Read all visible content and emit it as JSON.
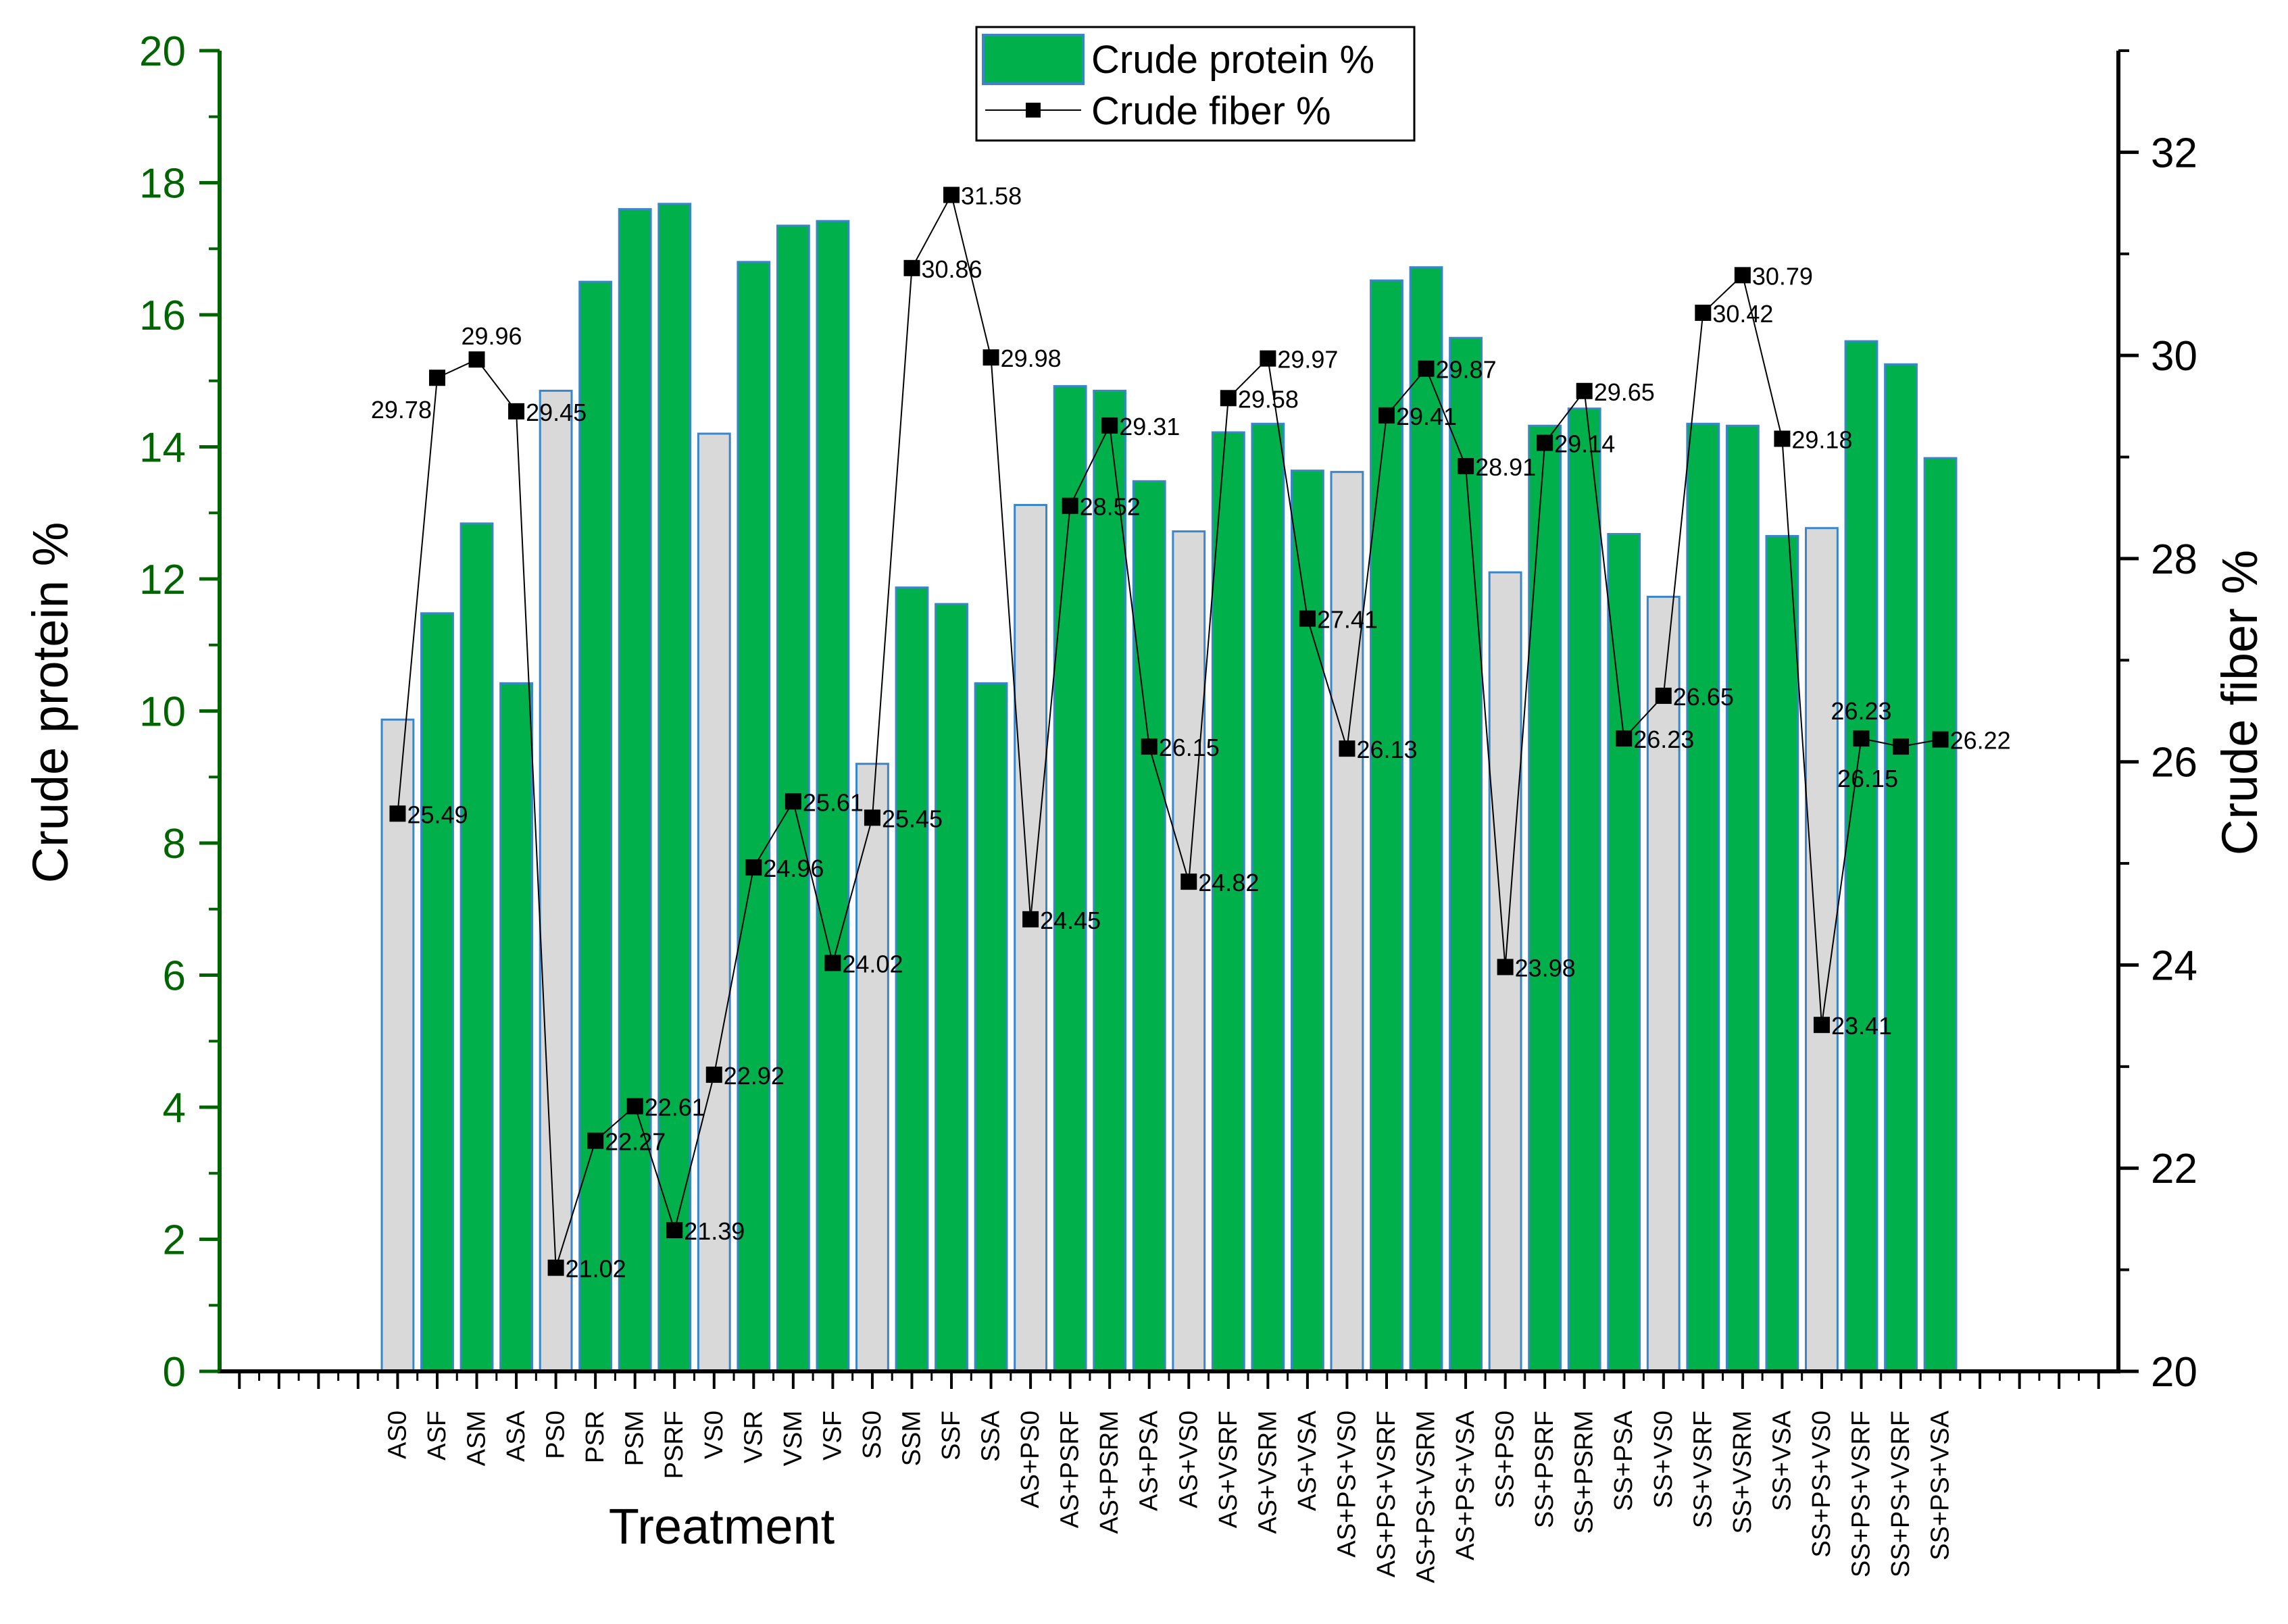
{
  "chart_data": {
    "type": "bar+line",
    "categories": [
      "AS0",
      "ASF",
      "ASM",
      "ASA",
      "PS0",
      "PSR",
      "PSM",
      "PSRF",
      "VS0",
      "VSR",
      "VSM",
      "VSF",
      "SS0",
      "SSM",
      "SSF",
      "SSA",
      "AS+PS0",
      "AS+PSRF",
      "AS+PSRM",
      "AS+PSA",
      "AS+VS0",
      "AS+VSRF",
      "AS+VSRM",
      "AS+VSA",
      "AS+PS+VS0",
      "AS+PS+VSRF",
      "AS+PS+VSRM",
      "AS+PS+VSA",
      "SS+PS0",
      "SS+PSRF",
      "SS+PSRM",
      "SS+PSA",
      "SS+VS0",
      "SS+VSRF",
      "SS+VSRM",
      "SS+VSA",
      "SS+PS+VS0",
      "SS+PS+VSRF",
      "SS+PS+VSRF",
      "SS+PS+VSA"
    ],
    "control_categories": [
      "AS0",
      "PS0",
      "VS0",
      "SS0",
      "AS+PS0",
      "AS+VS0",
      "AS+PS+VS0",
      "SS+PS0",
      "SS+VS0",
      "SS+PS+VS0"
    ],
    "series": [
      {
        "name": "Crude protein %",
        "type": "bar",
        "axis": "left",
        "color": "#00B04A",
        "control_color": "#D9D9D9",
        "values": [
          9.87,
          11.48,
          12.84,
          10.42,
          14.85,
          16.5,
          17.6,
          17.68,
          14.2,
          16.8,
          17.35,
          17.42,
          9.2,
          11.87,
          11.62,
          10.42,
          13.12,
          14.92,
          14.85,
          13.48,
          12.72,
          14.22,
          14.35,
          13.64,
          13.62,
          16.52,
          16.72,
          15.65,
          12.1,
          14.32,
          14.58,
          12.68,
          11.73,
          14.35,
          14.32,
          12.65,
          12.77,
          15.6,
          15.25,
          13.83
        ]
      },
      {
        "name": "Crude fiber %",
        "type": "line",
        "axis": "right",
        "color": "#000000",
        "values": [
          25.49,
          29.78,
          29.96,
          29.45,
          21.02,
          22.27,
          22.61,
          21.39,
          22.92,
          24.96,
          25.61,
          24.02,
          25.45,
          30.86,
          31.58,
          29.98,
          24.45,
          28.52,
          29.31,
          26.15,
          24.82,
          29.58,
          29.97,
          27.41,
          26.13,
          29.41,
          29.87,
          28.91,
          23.98,
          29.14,
          29.65,
          26.23,
          26.65,
          30.42,
          30.79,
          29.18,
          23.41,
          26.23,
          26.15,
          26.22
        ],
        "labels": [
          "25.49",
          "29.78",
          "29.96",
          "29.45",
          "21.02",
          "22.27",
          "22.61",
          "21.39",
          "22.92",
          "24.96",
          "25.61",
          "24.02",
          "25.45",
          "30.86",
          "31.58",
          "29.98",
          "24.45",
          "28.52",
          "29.31",
          "26.15",
          "24.82",
          "29.58",
          "29.97",
          "27.41",
          "26.13",
          "29.41",
          "29.87",
          "28.91",
          "23.98",
          "29.14",
          "29.65",
          "26.23",
          "26.65",
          "30.42",
          "30.79",
          "29.18",
          "23.41",
          "26.23",
          "26.15",
          "26.22"
        ]
      }
    ],
    "xlabel": "Treatment",
    "ylabel": "Crude protein %",
    "y2label": "Crude fiber %",
    "ylim": [
      0,
      20
    ],
    "y2lim": [
      20,
      33
    ],
    "yticks": [
      "0",
      "2",
      "4",
      "6",
      "8",
      "10",
      "12",
      "14",
      "16",
      "18",
      "20"
    ],
    "y2ticks": [
      "20",
      "22",
      "24",
      "26",
      "28",
      "30",
      "32"
    ],
    "legend_position": "top-center",
    "grid": false
  }
}
